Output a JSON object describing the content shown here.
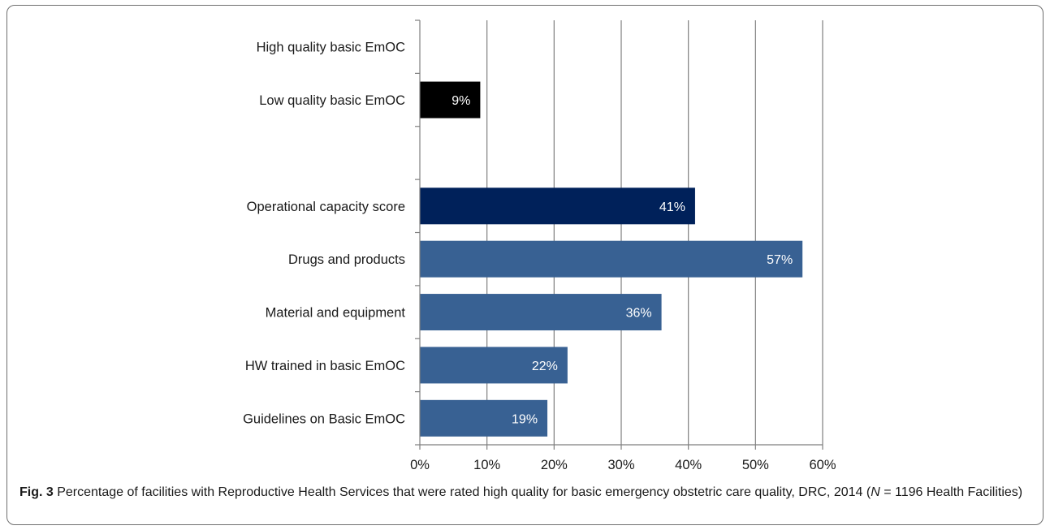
{
  "chart_data": {
    "type": "bar",
    "orientation": "horizontal",
    "categories": [
      "High quality basic EmOC",
      "Low quality basic EmOC",
      "",
      "Operational capacity score",
      "Drugs and products",
      "Material and equipment",
      "HW trained in basic EmOC",
      "Guidelines on Basic EmOC"
    ],
    "values": [
      0,
      9,
      null,
      41,
      57,
      36,
      22,
      19
    ],
    "data_labels": [
      "",
      "9%",
      "",
      "41%",
      "57%",
      "36%",
      "22%",
      "19%"
    ],
    "bar_colors": [
      "#000000",
      "#000000",
      "#000000",
      "#00215a",
      "#386193",
      "#386193",
      "#386193",
      "#386193"
    ],
    "xlim": [
      0,
      60
    ],
    "x_ticks": [
      0,
      10,
      20,
      30,
      40,
      50,
      60
    ],
    "x_tick_labels": [
      "0%",
      "10%",
      "20%",
      "30%",
      "40%",
      "50%",
      "60%"
    ],
    "grid": "vertical",
    "grid_color": "#7f7f7f",
    "legend": "none"
  },
  "caption": {
    "label": "Fig. 3",
    "text_before_n": " Percentage of facilities with Reproductive Health Services that were rated high quality for basic emergency obstetric care quality, DRC, 2014 (",
    "n_symbol": "N",
    "text_after_n": " = 1196 Health Facilities)"
  }
}
